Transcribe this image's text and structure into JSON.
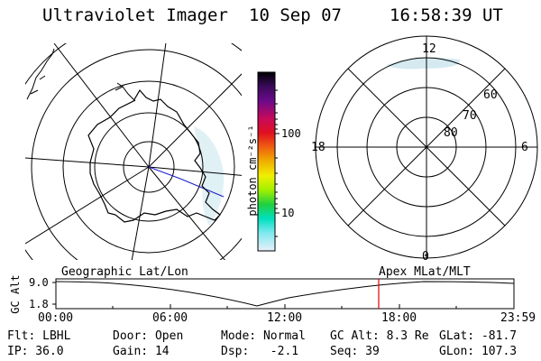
{
  "header": {
    "title": "Ultraviolet Imager",
    "date": "10 Sep 07",
    "time": "16:58:39 UT"
  },
  "left_map": {
    "label": "Geographic Lat/Lon"
  },
  "right_map": {
    "label": "Apex MLat/MLT",
    "mlt_labels": {
      "top": "12",
      "left": "18",
      "right": "6",
      "bottom": "0"
    },
    "lat_labels": [
      "60",
      "70",
      "80"
    ]
  },
  "colorbar": {
    "unit_label": "photon cm⁻²s⁻¹",
    "ticks": [
      "100",
      "10"
    ],
    "colors": [
      "#000000",
      "#3a0a5a",
      "#6a0a8a",
      "#c80a5a",
      "#e01020",
      "#f06010",
      "#f0b000",
      "#f0f000",
      "#a0f000",
      "#20d040",
      "#00e0c0",
      "#80e8f0",
      "#e8f0f8"
    ]
  },
  "altitude_plot": {
    "ylabel": "GC Alt",
    "yticks": [
      "9.0",
      "1.8"
    ],
    "xticks": [
      "00:00",
      "06:00",
      "12:00",
      "18:00",
      "23:59"
    ],
    "current_marker_color": "#e00000"
  },
  "footer": {
    "row1": [
      "Flt: LBHL",
      "Door: Open",
      "Mode: Normal",
      "GC Alt: 8.3 Re",
      "GLat: -81.7"
    ],
    "row2": [
      "IP: 36.0",
      "Gain: 14",
      "Dsp:   -2.1",
      "Seq: 39",
      "GLon: 107.3"
    ]
  }
}
